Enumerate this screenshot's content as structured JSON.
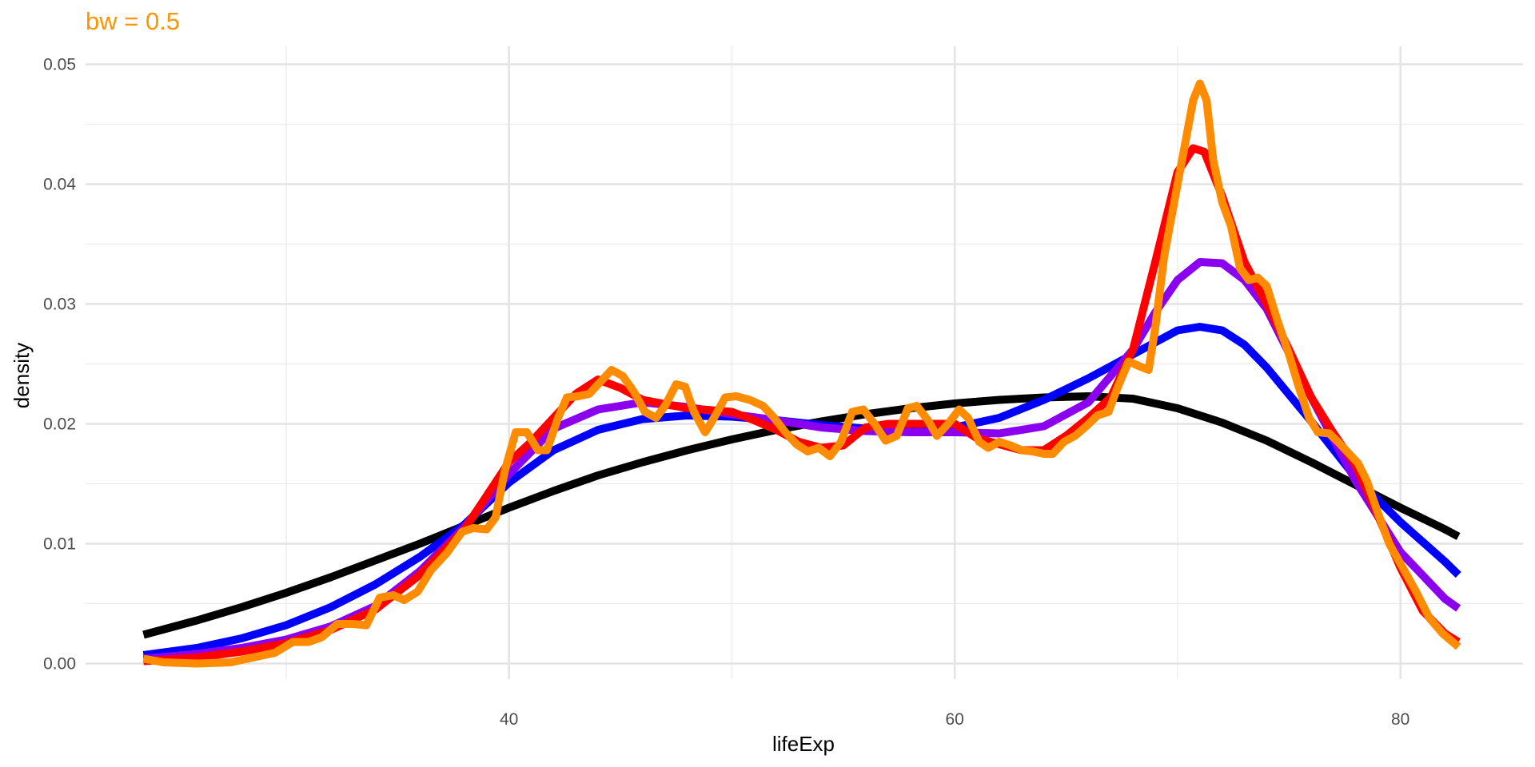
{
  "chart_data": {
    "type": "line",
    "title": "bw = 0.5",
    "title_color": "#FF9500",
    "xlabel": "lifeExp",
    "ylabel": "density",
    "xlim": [
      21,
      85.5
    ],
    "ylim": [
      -0.0013,
      0.0515
    ],
    "x_ticks": [
      40,
      60,
      80
    ],
    "x_tick_labels": [
      "40",
      "60",
      "80"
    ],
    "x_minor_ticks": [
      30,
      50,
      70
    ],
    "y_ticks": [
      0,
      0.01,
      0.02,
      0.03,
      0.04,
      0.05
    ],
    "y_tick_labels": [
      "0.00",
      "0.01",
      "0.02",
      "0.03",
      "0.04",
      "0.05"
    ],
    "y_minor_ticks": [
      0.005,
      0.015,
      0.025,
      0.035,
      0.045
    ],
    "grid": true,
    "legend": "none",
    "series": [
      {
        "color": "#000000",
        "points": [
          [
            23.6,
            0.0024
          ],
          [
            26,
            0.0036
          ],
          [
            28,
            0.0047
          ],
          [
            30,
            0.0059
          ],
          [
            32,
            0.0072
          ],
          [
            34,
            0.0086
          ],
          [
            36,
            0.01
          ],
          [
            38,
            0.0115
          ],
          [
            40,
            0.013
          ],
          [
            42,
            0.0144
          ],
          [
            44,
            0.0157
          ],
          [
            46,
            0.0168
          ],
          [
            48,
            0.0178
          ],
          [
            50,
            0.0187
          ],
          [
            52,
            0.0195
          ],
          [
            54,
            0.0202
          ],
          [
            56,
            0.0208
          ],
          [
            58,
            0.0213
          ],
          [
            60,
            0.0217
          ],
          [
            62,
            0.022
          ],
          [
            64,
            0.0222
          ],
          [
            66,
            0.0223
          ],
          [
            68,
            0.0221
          ],
          [
            70,
            0.0213
          ],
          [
            72,
            0.0201
          ],
          [
            74,
            0.0186
          ],
          [
            76,
            0.0168
          ],
          [
            78,
            0.0149
          ],
          [
            80,
            0.013
          ],
          [
            82,
            0.0112
          ],
          [
            82.6,
            0.0106
          ]
        ]
      },
      {
        "color": "#0000FF",
        "points": [
          [
            23.6,
            0.0007
          ],
          [
            26,
            0.0013
          ],
          [
            28,
            0.0021
          ],
          [
            30,
            0.0032
          ],
          [
            32,
            0.0047
          ],
          [
            34,
            0.0066
          ],
          [
            36,
            0.0089
          ],
          [
            38,
            0.0116
          ],
          [
            40,
            0.0151
          ],
          [
            42,
            0.0178
          ],
          [
            44,
            0.0195
          ],
          [
            46,
            0.0204
          ],
          [
            48,
            0.0207
          ],
          [
            50,
            0.0206
          ],
          [
            52,
            0.0203
          ],
          [
            54,
            0.0199
          ],
          [
            56,
            0.0196
          ],
          [
            58,
            0.0195
          ],
          [
            60,
            0.0197
          ],
          [
            62,
            0.0205
          ],
          [
            64,
            0.022
          ],
          [
            66,
            0.0238
          ],
          [
            68,
            0.0258
          ],
          [
            69,
            0.0268
          ],
          [
            70,
            0.0278
          ],
          [
            71,
            0.0281
          ],
          [
            72,
            0.0278
          ],
          [
            73,
            0.0266
          ],
          [
            74,
            0.0247
          ],
          [
            76,
            0.0202
          ],
          [
            78,
            0.0155
          ],
          [
            80,
            0.0118
          ],
          [
            82,
            0.0085
          ],
          [
            82.6,
            0.0074
          ]
        ]
      },
      {
        "color": "#8B00EE",
        "points": [
          [
            23.6,
            0.0004
          ],
          [
            26,
            0.0008
          ],
          [
            28,
            0.0013
          ],
          [
            30,
            0.002
          ],
          [
            32,
            0.0031
          ],
          [
            34,
            0.0048
          ],
          [
            36,
            0.0077
          ],
          [
            38,
            0.0114
          ],
          [
            40,
            0.0158
          ],
          [
            42,
            0.0196
          ],
          [
            44,
            0.0212
          ],
          [
            46,
            0.0218
          ],
          [
            48,
            0.0214
          ],
          [
            50,
            0.0208
          ],
          [
            52,
            0.0203
          ],
          [
            54,
            0.0197
          ],
          [
            56,
            0.0194
          ],
          [
            58,
            0.0193
          ],
          [
            60,
            0.0193
          ],
          [
            62,
            0.0192
          ],
          [
            64,
            0.0198
          ],
          [
            66,
            0.0218
          ],
          [
            68,
            0.0262
          ],
          [
            69,
            0.0293
          ],
          [
            70,
            0.032
          ],
          [
            71,
            0.0335
          ],
          [
            72,
            0.0334
          ],
          [
            73,
            0.032
          ],
          [
            74,
            0.0296
          ],
          [
            76,
            0.0222
          ],
          [
            78,
            0.0152
          ],
          [
            80,
            0.0093
          ],
          [
            82,
            0.0054
          ],
          [
            82.6,
            0.0046
          ]
        ]
      },
      {
        "color": "#FF0000",
        "points": [
          [
            23.6,
            0.0002
          ],
          [
            26,
            0.0005
          ],
          [
            28,
            0.001
          ],
          [
            30,
            0.0017
          ],
          [
            32,
            0.0028
          ],
          [
            34,
            0.0045
          ],
          [
            36,
            0.0074
          ],
          [
            38,
            0.0112
          ],
          [
            40,
            0.0168
          ],
          [
            41,
            0.0185
          ],
          [
            42,
            0.0205
          ],
          [
            43,
            0.0225
          ],
          [
            44,
            0.0237
          ],
          [
            45,
            0.023
          ],
          [
            46,
            0.022
          ],
          [
            48,
            0.0213
          ],
          [
            50,
            0.021
          ],
          [
            51,
            0.0203
          ],
          [
            52,
            0.0195
          ],
          [
            53,
            0.0185
          ],
          [
            54,
            0.018
          ],
          [
            55,
            0.0182
          ],
          [
            56,
            0.0197
          ],
          [
            57,
            0.02
          ],
          [
            58,
            0.02
          ],
          [
            59,
            0.02
          ],
          [
            60,
            0.02
          ],
          [
            61,
            0.0188
          ],
          [
            62,
            0.0183
          ],
          [
            63,
            0.0178
          ],
          [
            64,
            0.0178
          ],
          [
            65,
            0.019
          ],
          [
            66,
            0.0205
          ],
          [
            67,
            0.0222
          ],
          [
            68,
            0.0262
          ],
          [
            69,
            0.0335
          ],
          [
            70,
            0.041
          ],
          [
            70.7,
            0.043
          ],
          [
            71.2,
            0.0427
          ],
          [
            72,
            0.039
          ],
          [
            73,
            0.0335
          ],
          [
            74,
            0.03
          ],
          [
            75,
            0.0262
          ],
          [
            76,
            0.0222
          ],
          [
            77,
            0.0192
          ],
          [
            78,
            0.0165
          ],
          [
            79,
            0.0123
          ],
          [
            80,
            0.008
          ],
          [
            81,
            0.0044
          ],
          [
            82,
            0.0025
          ],
          [
            82.6,
            0.0018
          ]
        ]
      },
      {
        "color": "#FF8C00",
        "points": [
          [
            23.6,
            0.0004
          ],
          [
            24.5,
            0.0001
          ],
          [
            26,
            0.0
          ],
          [
            27.5,
            0.0001
          ],
          [
            28.5,
            0.0005
          ],
          [
            29.5,
            0.0009
          ],
          [
            30.3,
            0.0018
          ],
          [
            31,
            0.0018
          ],
          [
            31.6,
            0.0022
          ],
          [
            32.3,
            0.0033
          ],
          [
            33,
            0.0033
          ],
          [
            33.6,
            0.0032
          ],
          [
            34.2,
            0.0055
          ],
          [
            34.8,
            0.0057
          ],
          [
            35.3,
            0.0053
          ],
          [
            35.9,
            0.006
          ],
          [
            36.5,
            0.0078
          ],
          [
            37.2,
            0.0092
          ],
          [
            37.9,
            0.011
          ],
          [
            38.4,
            0.0113
          ],
          [
            39,
            0.0112
          ],
          [
            39.4,
            0.0122
          ],
          [
            39.8,
            0.016
          ],
          [
            40.3,
            0.0193
          ],
          [
            40.8,
            0.0193
          ],
          [
            41.3,
            0.0178
          ],
          [
            41.7,
            0.0178
          ],
          [
            42.2,
            0.0205
          ],
          [
            42.6,
            0.0222
          ],
          [
            43.1,
            0.0223
          ],
          [
            43.6,
            0.0225
          ],
          [
            44.1,
            0.0235
          ],
          [
            44.6,
            0.0245
          ],
          [
            45.1,
            0.024
          ],
          [
            45.6,
            0.0227
          ],
          [
            46.1,
            0.021
          ],
          [
            46.6,
            0.0205
          ],
          [
            47,
            0.0215
          ],
          [
            47.5,
            0.0233
          ],
          [
            47.9,
            0.0231
          ],
          [
            48.3,
            0.021
          ],
          [
            48.8,
            0.0193
          ],
          [
            49.2,
            0.0205
          ],
          [
            49.7,
            0.0222
          ],
          [
            50.2,
            0.0223
          ],
          [
            50.8,
            0.022
          ],
          [
            51.4,
            0.0215
          ],
          [
            51.9,
            0.0205
          ],
          [
            52.4,
            0.0193
          ],
          [
            52.9,
            0.0183
          ],
          [
            53.4,
            0.0177
          ],
          [
            53.9,
            0.018
          ],
          [
            54.4,
            0.0173
          ],
          [
            54.9,
            0.0185
          ],
          [
            55.4,
            0.021
          ],
          [
            55.9,
            0.0212
          ],
          [
            56.4,
            0.02
          ],
          [
            56.9,
            0.0186
          ],
          [
            57.4,
            0.019
          ],
          [
            57.9,
            0.0213
          ],
          [
            58.3,
            0.0215
          ],
          [
            58.8,
            0.0203
          ],
          [
            59.2,
            0.019
          ],
          [
            59.7,
            0.02
          ],
          [
            60.2,
            0.0212
          ],
          [
            60.6,
            0.0205
          ],
          [
            61.1,
            0.0185
          ],
          [
            61.5,
            0.018
          ],
          [
            62,
            0.0185
          ],
          [
            62.5,
            0.0182
          ],
          [
            63,
            0.0178
          ],
          [
            63.5,
            0.0177
          ],
          [
            64,
            0.0175
          ],
          [
            64.4,
            0.0175
          ],
          [
            64.9,
            0.0185
          ],
          [
            65.4,
            0.019
          ],
          [
            65.9,
            0.0198
          ],
          [
            66.4,
            0.0207
          ],
          [
            66.9,
            0.021
          ],
          [
            67.3,
            0.023
          ],
          [
            67.8,
            0.0252
          ],
          [
            68.3,
            0.0248
          ],
          [
            68.7,
            0.0245
          ],
          [
            69,
            0.028
          ],
          [
            69.4,
            0.034
          ],
          [
            69.9,
            0.039
          ],
          [
            70.4,
            0.044
          ],
          [
            70.7,
            0.047
          ],
          [
            71,
            0.0484
          ],
          [
            71.3,
            0.047
          ],
          [
            71.6,
            0.042
          ],
          [
            72,
            0.0385
          ],
          [
            72.4,
            0.0365
          ],
          [
            72.8,
            0.033
          ],
          [
            73.2,
            0.032
          ],
          [
            73.6,
            0.0322
          ],
          [
            74,
            0.0315
          ],
          [
            74.5,
            0.0285
          ],
          [
            75,
            0.0258
          ],
          [
            75.4,
            0.0233
          ],
          [
            75.9,
            0.0205
          ],
          [
            76.3,
            0.0193
          ],
          [
            76.8,
            0.0192
          ],
          [
            77.2,
            0.0185
          ],
          [
            77.7,
            0.0175
          ],
          [
            78.1,
            0.0167
          ],
          [
            78.5,
            0.0152
          ],
          [
            79,
            0.0125
          ],
          [
            79.5,
            0.01
          ],
          [
            80.1,
            0.008
          ],
          [
            80.7,
            0.006
          ],
          [
            81.3,
            0.0038
          ],
          [
            81.9,
            0.0025
          ],
          [
            82.6,
            0.0014
          ]
        ]
      }
    ]
  }
}
